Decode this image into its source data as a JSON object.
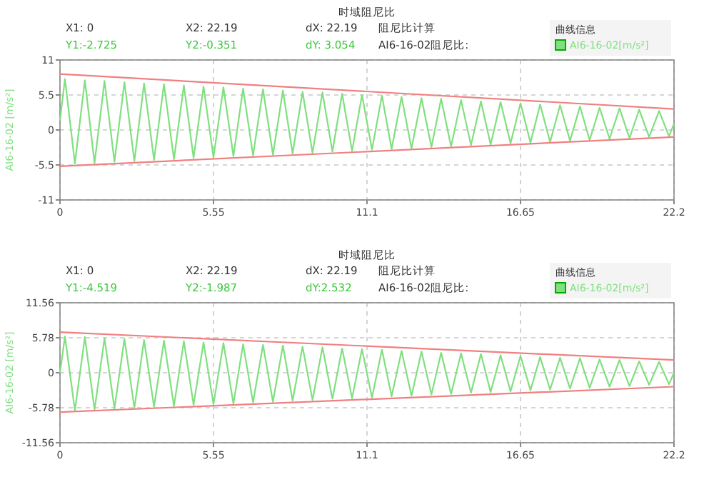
{
  "chart_data": [
    {
      "type": "line",
      "title": "时域阻尼比",
      "ylabel": "AI6-16-02 [m/s²]",
      "legend_title": "曲线信息",
      "legend": "top right",
      "grid": true,
      "xlim": [
        0,
        22.2
      ],
      "xticks": [
        0,
        5.55,
        11.1,
        16.65,
        22.2
      ],
      "ylim": [
        -11,
        11
      ],
      "yticks": [
        11,
        5.5,
        0,
        -5.5,
        -11
      ],
      "annotations": [
        "X1: 0",
        "X2: 22.19",
        "dX: 22.19",
        "Y1:-2.725",
        "Y2:-0.351",
        "dY: 3.054",
        "阻尼比计算",
        "AI6-16-02阻尼比:"
      ],
      "series": [
        {
          "name": "AI6-16-02[m/s²]",
          "color": "#80e080",
          "x": [
            0,
            0.18,
            0.54,
            0.9,
            1.25,
            1.61,
            1.97,
            2.33,
            2.69,
            3.04,
            3.4,
            3.76,
            4.12,
            4.48,
            4.83,
            5.19,
            5.55,
            5.91,
            6.27,
            6.62,
            6.98,
            7.34,
            7.7,
            8.06,
            8.41,
            8.77,
            9.13,
            9.49,
            9.85,
            10.2,
            10.56,
            10.92,
            11.28,
            11.64,
            11.99,
            12.35,
            12.71,
            13.07,
            13.43,
            13.78,
            14.14,
            14.5,
            14.86,
            15.22,
            15.57,
            15.93,
            16.29,
            16.65,
            17.01,
            17.36,
            17.72,
            18.08,
            18.44,
            18.8,
            19.15,
            19.51,
            19.87,
            20.23,
            20.59,
            20.94,
            21.3,
            21.66,
            22.02,
            22.2
          ],
          "values": [
            1.5,
            8.0,
            -5.3,
            7.8,
            -5.2,
            7.7,
            -5.0,
            7.5,
            -4.9,
            7.3,
            -4.7,
            7.2,
            -4.6,
            7.0,
            -4.4,
            6.8,
            -4.3,
            6.7,
            -4.1,
            6.5,
            -4.0,
            6.4,
            -3.9,
            6.2,
            -3.7,
            6.0,
            -3.6,
            5.9,
            -3.4,
            5.7,
            -3.3,
            5.5,
            -3.1,
            5.4,
            -3.0,
            5.2,
            -2.9,
            5.0,
            -2.7,
            4.9,
            -2.6,
            4.7,
            -2.4,
            4.5,
            -2.3,
            4.4,
            -2.1,
            4.2,
            -2.0,
            4.0,
            -1.9,
            3.9,
            -1.7,
            3.7,
            -1.6,
            3.5,
            -1.4,
            3.4,
            -1.3,
            3.2,
            -1.1,
            3.0,
            -1.0,
            1.0
          ]
        },
        {
          "type": "line",
          "color": "#f08080",
          "x": [
            0,
            22.2
          ],
          "values": [
            8.8,
            3.3
          ]
        },
        {
          "type": "line",
          "color": "#f08080",
          "x": [
            0,
            22.2
          ],
          "values": [
            -5.7,
            -1.1
          ]
        }
      ]
    },
    {
      "type": "line",
      "title": "时域阻尼比",
      "ylabel": "AI6-16-02 [m/s²]",
      "legend_title": "曲线信息",
      "legend": "top right",
      "grid": true,
      "xlim": [
        0,
        22.2
      ],
      "xticks": [
        0,
        5.55,
        11.1,
        16.65,
        22.2
      ],
      "ylim": [
        -11.56,
        11.56
      ],
      "yticks": [
        11.56,
        5.78,
        0,
        -5.78,
        -11.56
      ],
      "annotations": [
        "X1: 0",
        "X2: 22.19",
        "dX: 22.19",
        "Y1:-4.519",
        "Y2:-1.987",
        "dY:2.532",
        "阻尼比计算",
        "AI6-16-02阻尼比:"
      ],
      "series": [
        {
          "name": "AI6-16-02[m/s²]",
          "color": "#80e080",
          "x": [
            0,
            0.18,
            0.54,
            0.9,
            1.25,
            1.61,
            1.97,
            2.33,
            2.69,
            3.04,
            3.4,
            3.76,
            4.12,
            4.48,
            4.83,
            5.19,
            5.55,
            5.91,
            6.27,
            6.62,
            6.98,
            7.34,
            7.7,
            8.06,
            8.41,
            8.77,
            9.13,
            9.49,
            9.85,
            10.2,
            10.56,
            10.92,
            11.28,
            11.64,
            11.99,
            12.35,
            12.71,
            13.07,
            13.43,
            13.78,
            14.14,
            14.5,
            14.86,
            15.22,
            15.57,
            15.93,
            16.29,
            16.65,
            17.01,
            17.36,
            17.72,
            18.08,
            18.44,
            18.8,
            19.15,
            19.51,
            19.87,
            20.23,
            20.59,
            20.94,
            21.3,
            21.66,
            22.02,
            22.2
          ],
          "values": [
            0,
            6.0,
            -6.2,
            5.9,
            -6.1,
            5.7,
            -5.9,
            5.6,
            -5.8,
            5.4,
            -5.6,
            5.3,
            -5.5,
            5.2,
            -5.3,
            5.0,
            -5.2,
            4.9,
            -5.1,
            4.7,
            -4.9,
            4.6,
            -4.8,
            4.5,
            -4.6,
            4.3,
            -4.5,
            4.2,
            -4.3,
            4.0,
            -4.2,
            3.9,
            -4.1,
            3.8,
            -3.9,
            3.6,
            -3.8,
            3.5,
            -3.6,
            3.3,
            -3.5,
            3.2,
            -3.3,
            3.1,
            -3.2,
            2.9,
            -3.1,
            2.8,
            -2.9,
            2.6,
            -2.8,
            2.5,
            -2.6,
            2.4,
            -2.5,
            2.2,
            -2.3,
            2.1,
            -2.2,
            1.9,
            -2.0,
            1.8,
            -1.9,
            0
          ]
        },
        {
          "type": "line",
          "color": "#f08080",
          "x": [
            0,
            22.2
          ],
          "values": [
            6.7,
            2.1
          ]
        },
        {
          "type": "line",
          "color": "#f08080",
          "x": [
            0,
            22.2
          ],
          "values": [
            -6.5,
            -2.3
          ]
        }
      ]
    }
  ]
}
